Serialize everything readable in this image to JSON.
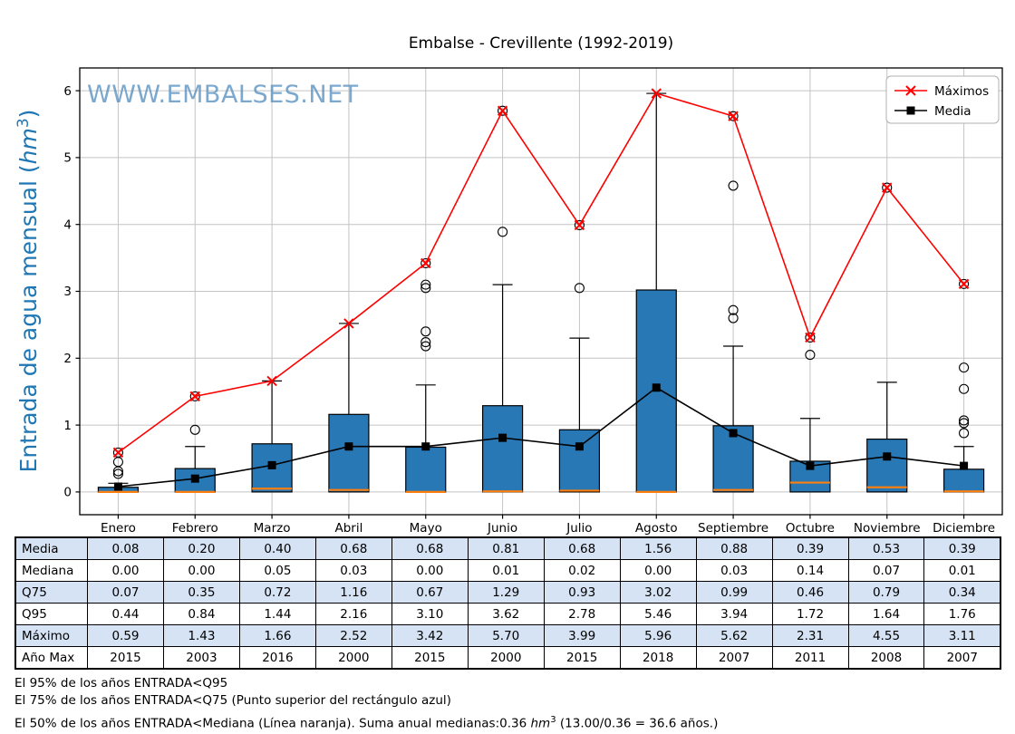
{
  "title": "Embalse - Crevillente (1992-2019)",
  "watermark": "WWW.EMBALSES.NET",
  "y_axis_label": {
    "pre": "Entrada de agua mensual (",
    "unit": "hm",
    "exp": "3",
    "post": ")"
  },
  "legend": {
    "items": [
      {
        "label": "Máximos",
        "marker": "x",
        "color": "#ff0000"
      },
      {
        "label": "Media",
        "marker": "square",
        "color": "#000000"
      }
    ]
  },
  "chart_data": {
    "type": "boxplot+lines",
    "title": "Embalse - Crevillente (1992-2019)",
    "ylabel": "Entrada de agua mensual (hm3)",
    "categories": [
      "Enero",
      "Febrero",
      "Marzo",
      "Abril",
      "Mayo",
      "Junio",
      "Julio",
      "Agosto",
      "Septiembre",
      "Octubre",
      "Noviembre",
      "Diciembre"
    ],
    "ylim": [
      -0.34,
      6.34
    ],
    "yticks": [
      0,
      1,
      2,
      3,
      4,
      5,
      6
    ],
    "grid": true,
    "legend_position": "upper right",
    "boxplot": {
      "q25": [
        0,
        0,
        0,
        0,
        0,
        0,
        0,
        0,
        0,
        0,
        0,
        0
      ],
      "q75": [
        0.07,
        0.35,
        0.72,
        1.16,
        0.67,
        1.29,
        0.93,
        3.02,
        0.99,
        0.46,
        0.79,
        0.34
      ],
      "median": [
        0.0,
        0.0,
        0.05,
        0.03,
        0.0,
        0.01,
        0.02,
        0.0,
        0.03,
        0.14,
        0.07,
        0.01
      ],
      "whisker_high": [
        0.13,
        0.68,
        1.66,
        2.52,
        1.6,
        3.1,
        2.3,
        5.96,
        2.18,
        1.1,
        1.64,
        0.68
      ],
      "outliers": [
        [
          0.27,
          0.31,
          0.45,
          0.59
        ],
        [
          0.93,
          1.43
        ],
        [],
        [],
        [
          2.18,
          2.24,
          2.4,
          3.05,
          3.1,
          3.42
        ],
        [
          3.89,
          5.7
        ],
        [
          3.05,
          3.99
        ],
        [],
        [
          2.6,
          2.72,
          4.58,
          5.62
        ],
        [
          2.05,
          2.31
        ],
        [
          4.55
        ],
        [
          0.88,
          1.03,
          1.07,
          1.54,
          1.86,
          3.11
        ]
      ]
    },
    "series": [
      {
        "name": "Máximos",
        "marker": "x",
        "color": "#ff0000",
        "values": [
          0.59,
          1.43,
          1.66,
          2.52,
          3.42,
          5.7,
          3.99,
          5.96,
          5.62,
          2.31,
          4.55,
          3.11
        ]
      },
      {
        "name": "Media",
        "marker": "square",
        "color": "#000000",
        "values": [
          0.08,
          0.2,
          0.4,
          0.68,
          0.68,
          0.81,
          0.68,
          1.56,
          0.88,
          0.39,
          0.53,
          0.39
        ]
      }
    ],
    "colors": {
      "box_fill": "#2878b5",
      "box_edge": "#000000",
      "median_line": "#ff7f0e",
      "grid_line": "#c4c4c4",
      "axis_label_blue": "#1f77b4",
      "watermark_blue": "#5b93c2"
    }
  },
  "table": {
    "row_labels": [
      "Media",
      "Mediana",
      "Q75",
      "Q95",
      "Máximo",
      "Año Max"
    ],
    "columns": [
      "Enero",
      "Febrero",
      "Marzo",
      "Abril",
      "Mayo",
      "Junio",
      "Julio",
      "Agosto",
      "Septiembre",
      "Octubre",
      "Noviembre",
      "Diciembre"
    ],
    "values": [
      [
        "0.08",
        "0.20",
        "0.40",
        "0.68",
        "0.68",
        "0.81",
        "0.68",
        "1.56",
        "0.88",
        "0.39",
        "0.53",
        "0.39"
      ],
      [
        "0.00",
        "0.00",
        "0.05",
        "0.03",
        "0.00",
        "0.01",
        "0.02",
        "0.00",
        "0.03",
        "0.14",
        "0.07",
        "0.01"
      ],
      [
        "0.07",
        "0.35",
        "0.72",
        "1.16",
        "0.67",
        "1.29",
        "0.93",
        "3.02",
        "0.99",
        "0.46",
        "0.79",
        "0.34"
      ],
      [
        "0.44",
        "0.84",
        "1.44",
        "2.16",
        "3.10",
        "3.62",
        "2.78",
        "5.46",
        "3.94",
        "1.72",
        "1.64",
        "1.76"
      ],
      [
        "0.59",
        "1.43",
        "1.66",
        "2.52",
        "3.42",
        "5.70",
        "3.99",
        "5.96",
        "5.62",
        "2.31",
        "4.55",
        "3.11"
      ],
      [
        "2015",
        "2003",
        "2016",
        "2000",
        "2015",
        "2000",
        "2015",
        "2018",
        "2007",
        "2011",
        "2008",
        "2007"
      ]
    ],
    "row_highlight_color": "#d5e3f4"
  },
  "footer": {
    "line1": "El 95% de los años ENTRADA<Q95",
    "line2": "El 75% de los años ENTRADA<Q75 (Punto superior del rectángulo azul)",
    "line3_pre": "El 50% de los años ENTRADA<Mediana (Línea naranja). Suma anual medianas:0.36 ",
    "line3_unit": "hm",
    "line3_exp": "3",
    "line3_post": " (13.00/0.36 = 36.6 años.)"
  }
}
